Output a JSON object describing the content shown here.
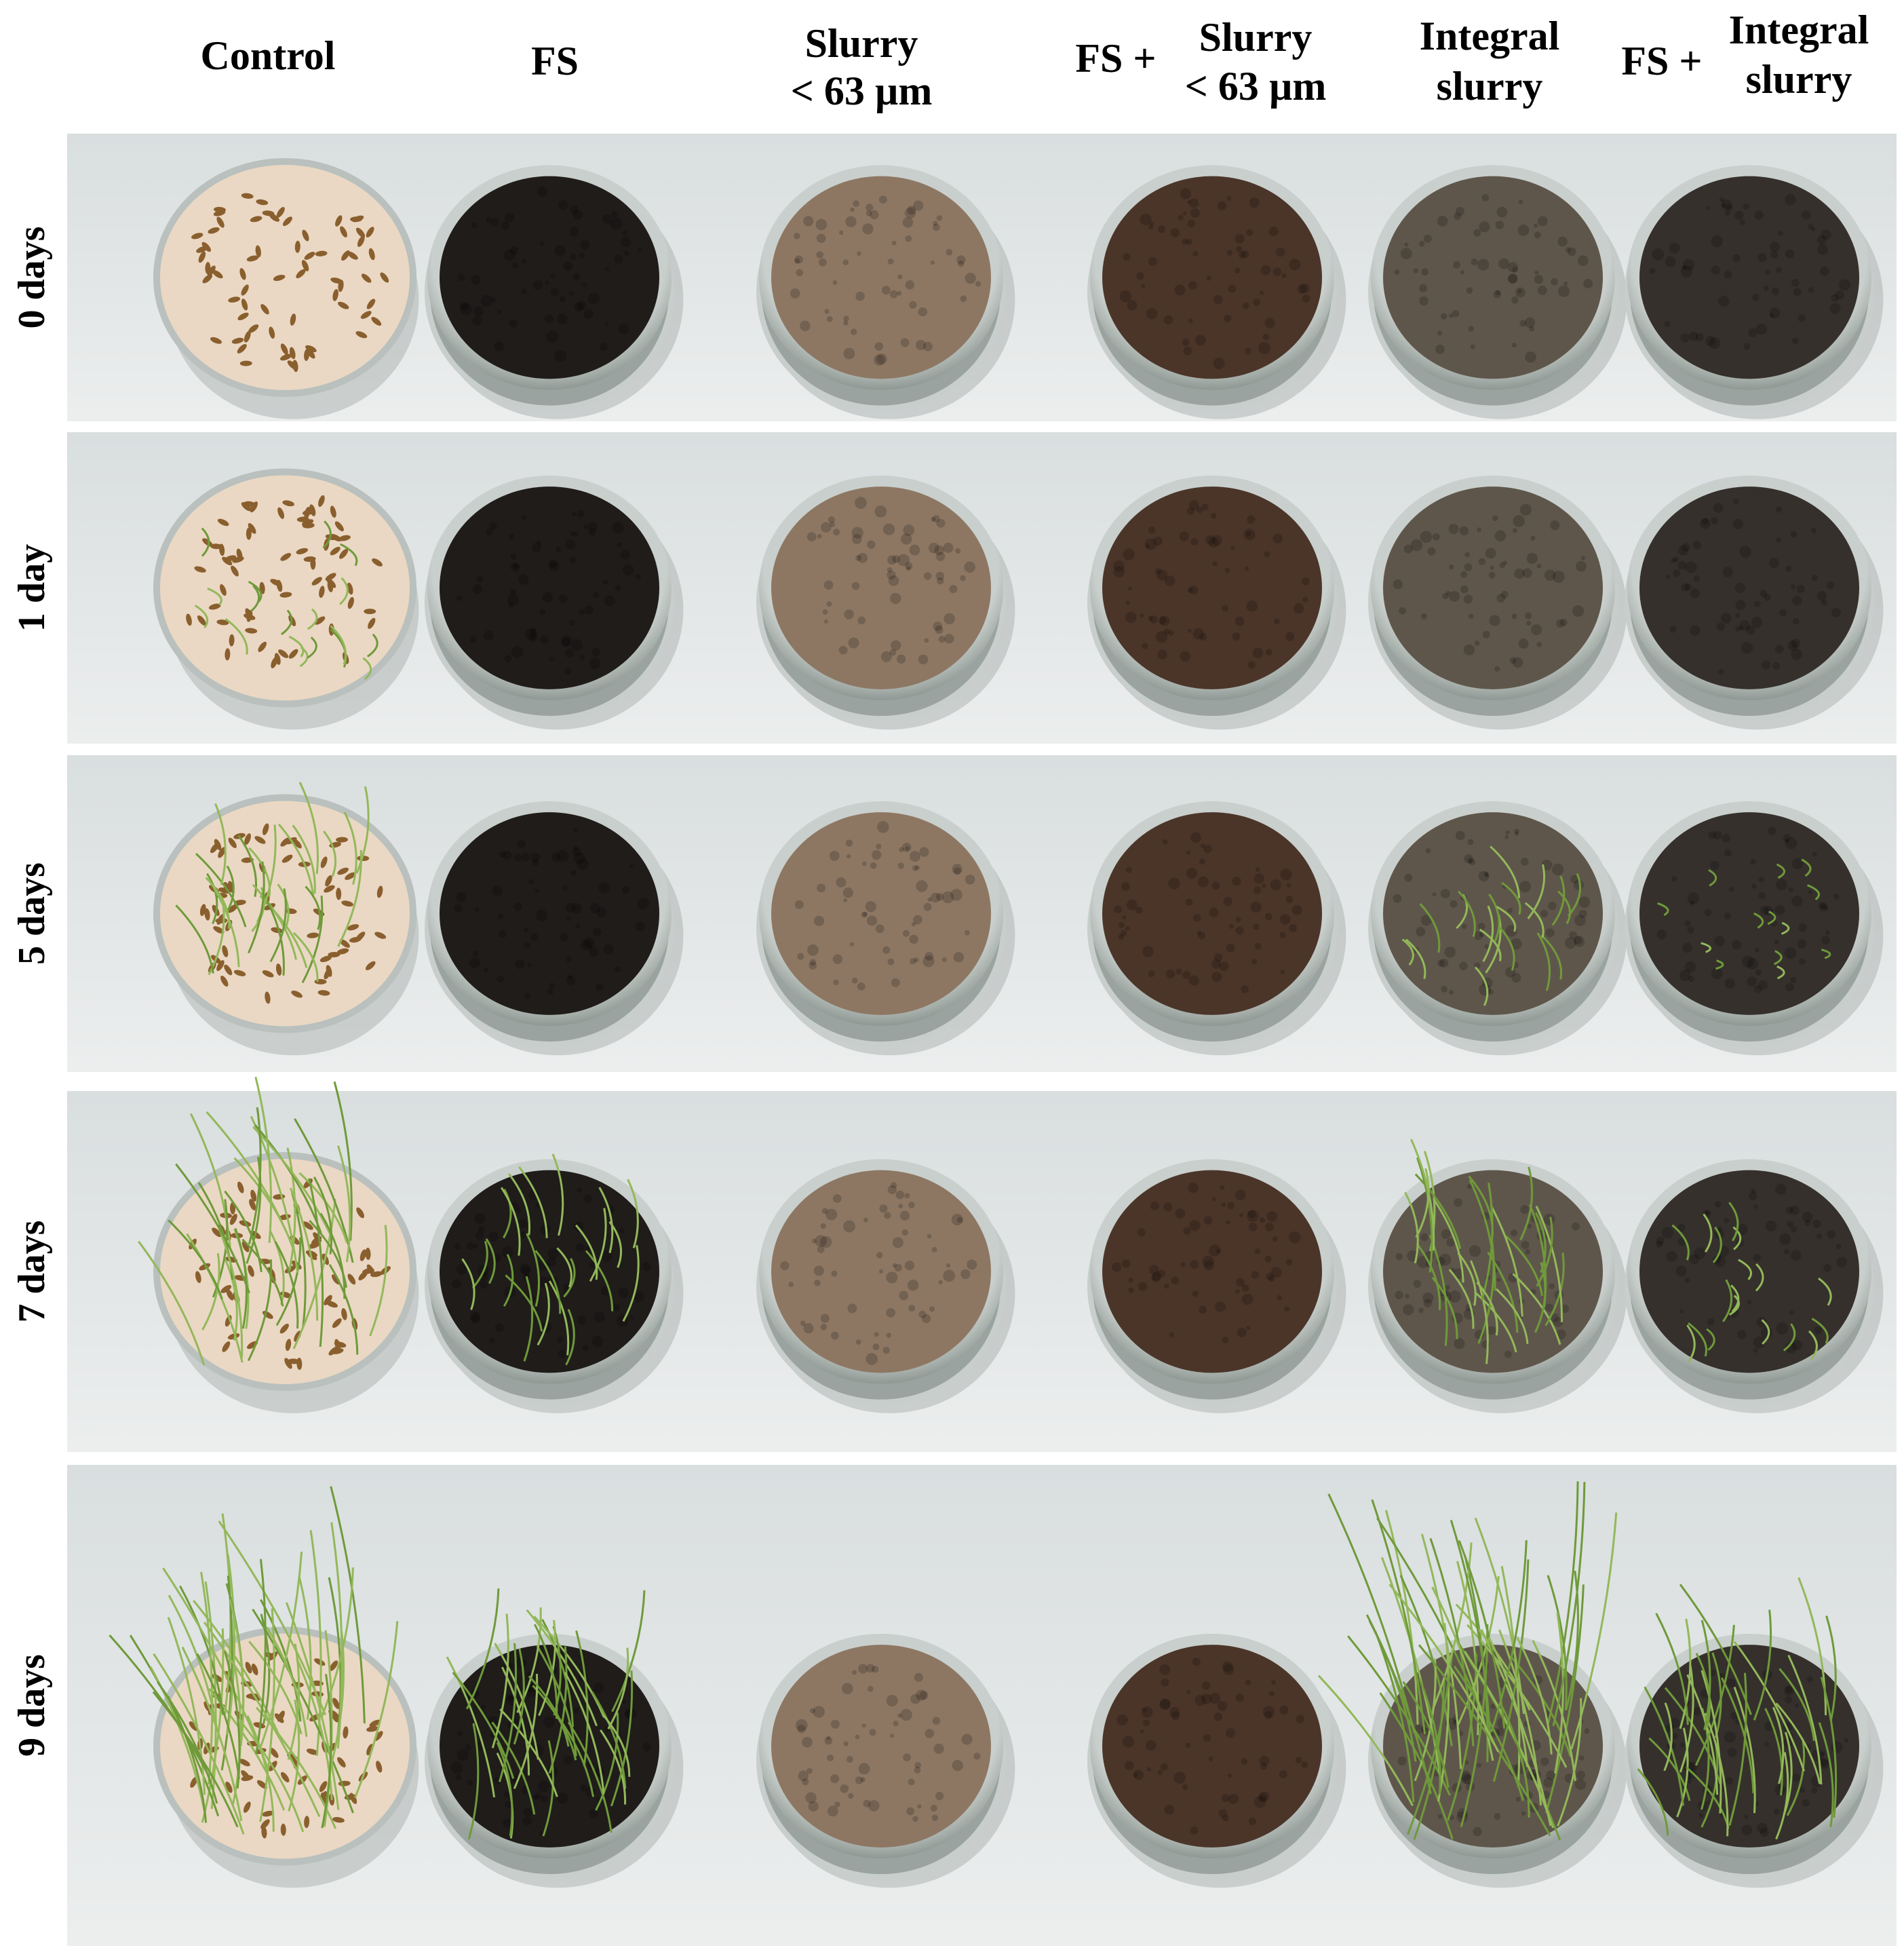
{
  "columns": [
    {
      "lines": [
        "Control"
      ]
    },
    {
      "lines": [
        "FS"
      ]
    },
    {
      "lines": [
        "Slurry",
        "< 63 µm"
      ]
    },
    {
      "prefix": "FS +",
      "lines": [
        "Slurry",
        "< 63 µm"
      ]
    },
    {
      "lines": [
        "Integral",
        "slurry"
      ]
    },
    {
      "prefix": "FS +",
      "lines": [
        "Integral",
        "slurry"
      ]
    }
  ],
  "rows": [
    "0 days",
    "1 day",
    "5 days",
    "7 days",
    "9 days"
  ]
}
